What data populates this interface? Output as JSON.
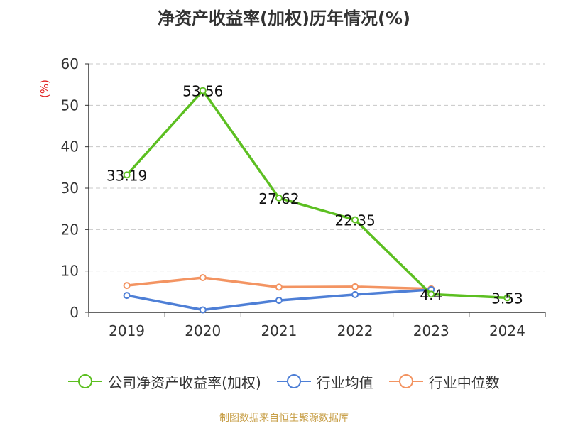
{
  "title": "净资产收益率(加权)历年情况(%)",
  "source": "制图数据来自恒生聚源数据库",
  "chart_data": {
    "type": "line",
    "title": "净资产收益率(加权)历年情况(%)",
    "ylabel": "(%)",
    "xlabel": "",
    "categories": [
      "2019",
      "2020",
      "2021",
      "2022",
      "2023",
      "2024"
    ],
    "ylim": [
      0,
      60
    ],
    "yticks": [
      0,
      10,
      20,
      30,
      40,
      50,
      60
    ],
    "grid": true,
    "legend": "bottom",
    "series": [
      {
        "name": "公司净资产收益率(加权)",
        "color": "#5cbf21",
        "values": [
          33.19,
          53.56,
          27.62,
          22.35,
          4.4,
          3.53
        ],
        "labels": [
          "33.19",
          "53.56",
          "27.62",
          "22.35",
          "4.4",
          "3.53"
        ]
      },
      {
        "name": "行业均值",
        "color": "#4e7fd6",
        "values": [
          4.1,
          0.6,
          2.9,
          4.3,
          5.5,
          null
        ]
      },
      {
        "name": "行业中位数",
        "color": "#f39462",
        "values": [
          6.5,
          8.4,
          6.1,
          6.2,
          5.7,
          null
        ]
      }
    ]
  }
}
